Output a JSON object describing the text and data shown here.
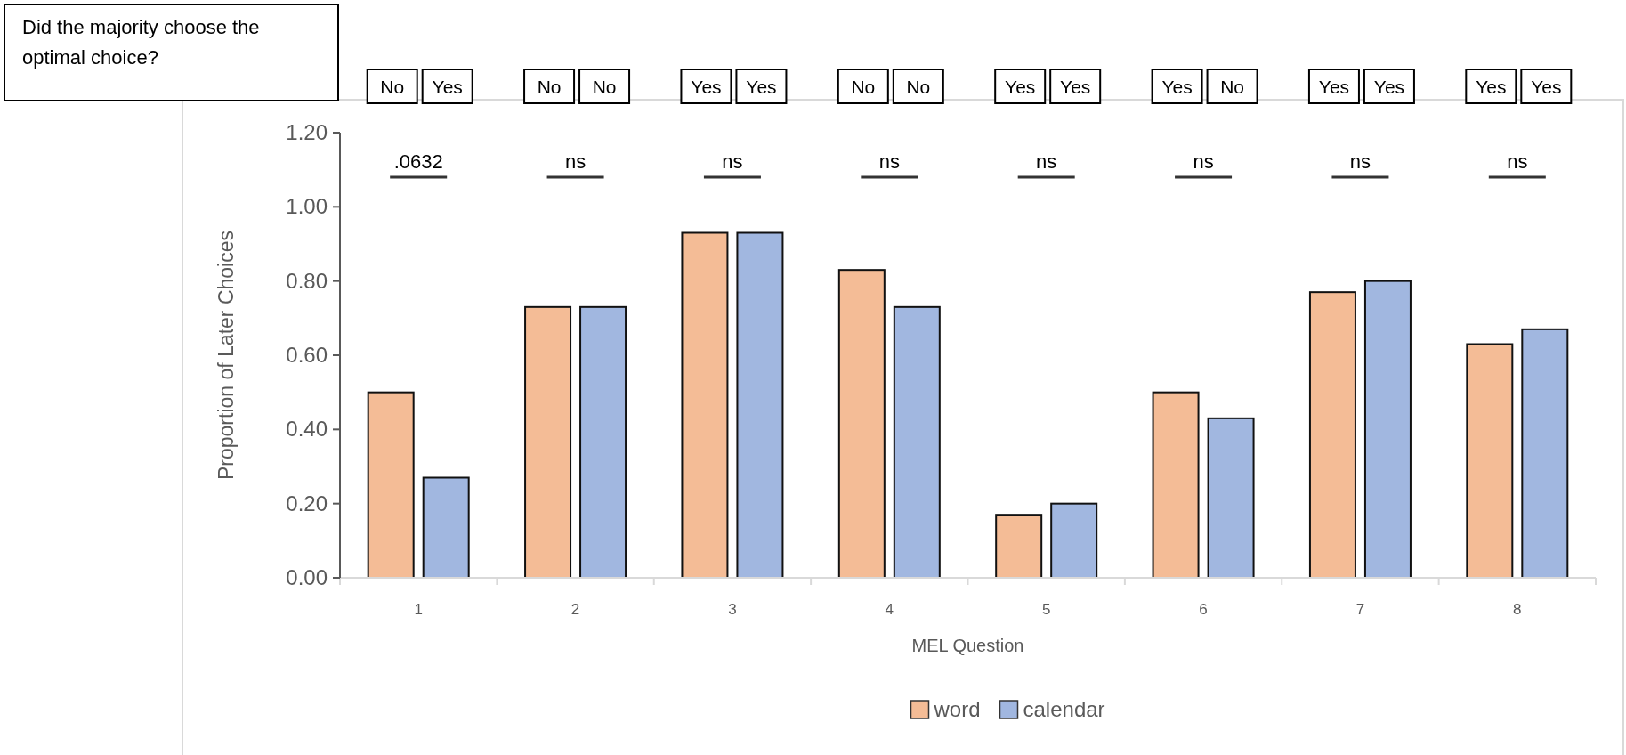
{
  "chart_data": {
    "type": "bar",
    "xlabel": "MEL Question",
    "ylabel": "Proportion of Later Choices",
    "categories": [
      "1",
      "2",
      "3",
      "4",
      "5",
      "6",
      "7",
      "8"
    ],
    "series": [
      {
        "name": "word",
        "color": "#f4bc96",
        "values": [
          0.5,
          0.73,
          0.93,
          0.83,
          0.17,
          0.5,
          0.77,
          0.63
        ]
      },
      {
        "name": "calendar",
        "color": "#a1b7e0",
        "values": [
          0.27,
          0.73,
          0.93,
          0.73,
          0.2,
          0.43,
          0.8,
          0.67
        ]
      }
    ],
    "ylim": [
      0,
      1.2
    ],
    "yticks": [
      {
        "value": 0,
        "label": "0.00"
      },
      {
        "value": 0.2,
        "label": "0.20"
      },
      {
        "value": 0.4,
        "label": "0.40"
      },
      {
        "value": 0.6,
        "label": "0.60"
      },
      {
        "value": 0.8,
        "label": "0.80"
      },
      {
        "value": 1.0,
        "label": "1.00"
      },
      {
        "value": 1.2,
        "label": "1.20"
      }
    ],
    "grid": false,
    "legend": "bottom",
    "annotations": [
      "Did the majority choose the optimal choice?",
      ".0632",
      "No",
      "Yes",
      "ns",
      "No",
      "No",
      "ns",
      "Yes",
      "Yes",
      "ns",
      "No",
      "No",
      "ns",
      "Yes",
      "Yes",
      "ns",
      "Yes",
      "No",
      "ns",
      "Yes",
      "Yes",
      "ns",
      "Yes",
      "Yes"
    ]
  }
}
